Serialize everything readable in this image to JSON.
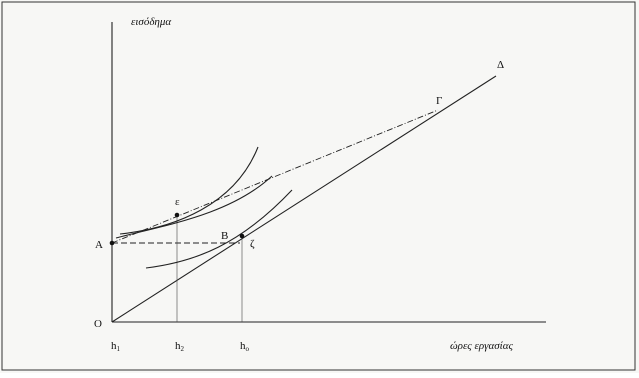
{
  "figure": {
    "y_axis_label": "εισόδημα",
    "x_axis_label": "ώρες εργασίας",
    "origin_label": "O",
    "point_A": "A",
    "point_B": "B",
    "point_zeta": "ζ",
    "point_epsilon": "ε",
    "point_gamma": "Γ",
    "point_delta": "Δ",
    "x_ticks": [
      {
        "base": "h",
        "sub": "1"
      },
      {
        "base": "h",
        "sub": "2"
      },
      {
        "base": "h",
        "sub": "o"
      }
    ]
  },
  "colors": {
    "frame": "#333333",
    "lines": "#222222",
    "background": "#f7f7f5"
  }
}
